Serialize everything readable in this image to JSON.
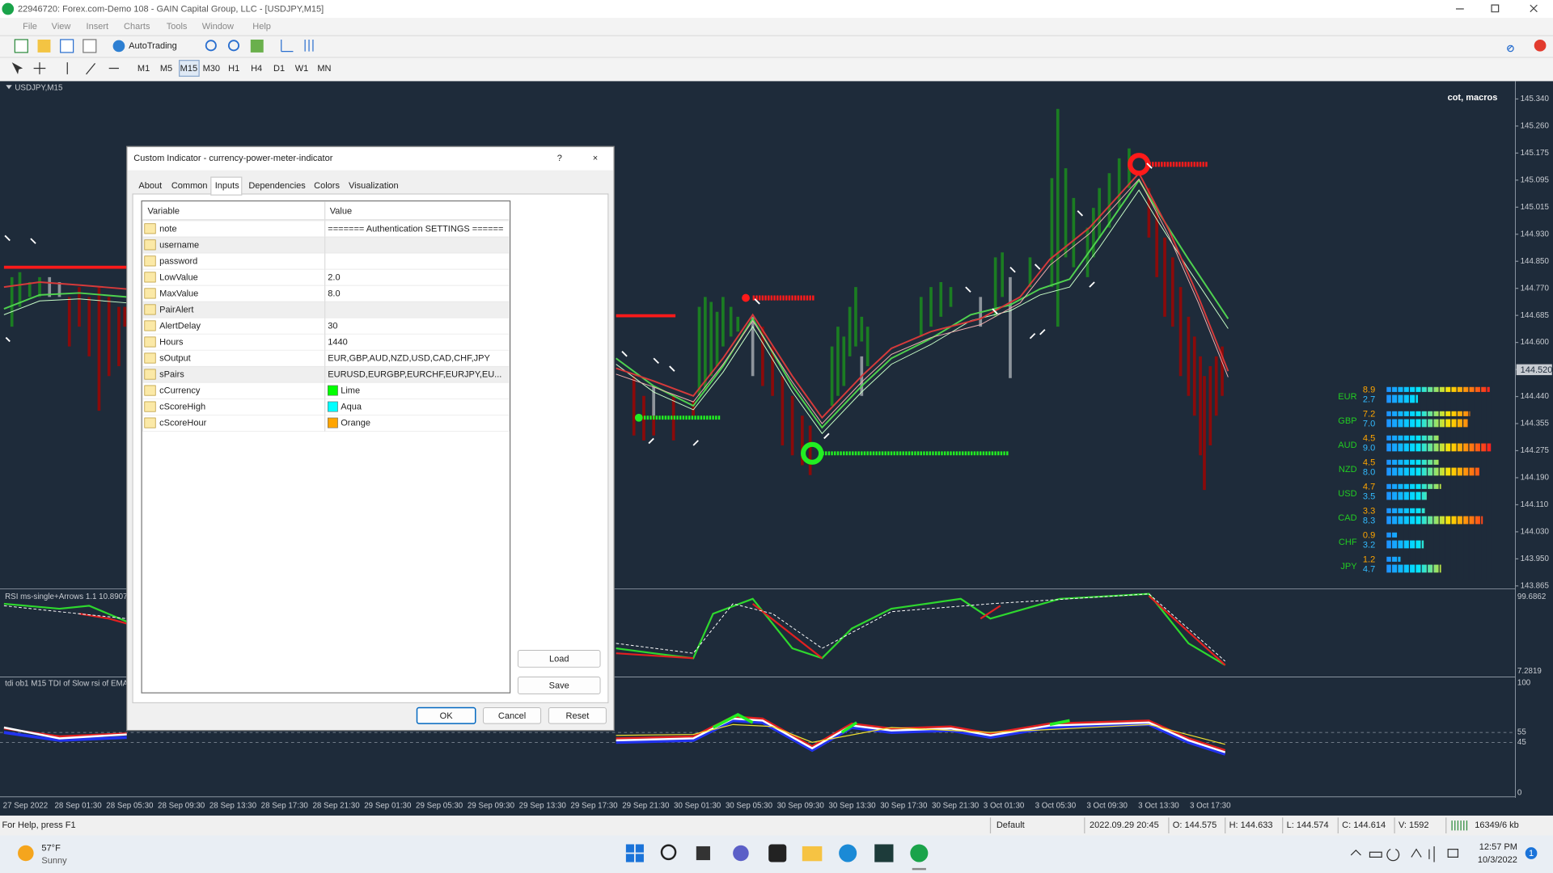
{
  "window": {
    "title": "22946720: Forex.com-Demo 108 - GAIN Capital Group, LLC - [USDJPY,M15]"
  },
  "menu": [
    "File",
    "View",
    "Insert",
    "Charts",
    "Tools",
    "Window",
    "Help"
  ],
  "toolbar": {
    "autotrading": "AutoTrading",
    "timeframes": [
      "M1",
      "M5",
      "M15",
      "M30",
      "H1",
      "H4",
      "D1",
      "W1",
      "MN"
    ]
  },
  "chart": {
    "symbol": "USDJPY,M15",
    "label": "cot, macros",
    "price_labels": [
      "145.340",
      "145.260",
      "145.175",
      "145.095",
      "145.015",
      "144.930",
      "144.850",
      "144.770",
      "144.685",
      "144.600",
      "144.520",
      "144.440",
      "144.355",
      "144.275",
      "144.190",
      "144.110",
      "144.030",
      "143.950",
      "143.865"
    ],
    "current_price": "144.520",
    "time_labels": [
      "27 Sep 2022",
      "28 Sep 01:30",
      "28 Sep 05:30",
      "28 Sep 09:30",
      "28 Sep 13:30",
      "28 Sep 17:30",
      "28 Sep 21:30",
      "29 Sep 01:30",
      "29 Sep 05:30",
      "29 Sep 09:30",
      "29 Sep 13:30",
      "29 Sep 17:30",
      "29 Sep 21:30",
      "30 Sep 01:30",
      "30 Sep 05:30",
      "30 Sep 09:30",
      "30 Sep 13:30",
      "30 Sep 17:30",
      "30 Sep 21:30",
      "3 Oct 01:30",
      "3 Oct 05:30",
      "3 Oct 09:30",
      "3 Oct 13:30",
      "3 Oct 17:30"
    ],
    "indicator1": {
      "name": "RSI ms-single+Arrows 1.1 10.8907",
      "top": "99.6862",
      "bottom": "7.2819"
    },
    "indicator2": {
      "name": "tdi ob1 M15 TDI of Slow rsi of EMA",
      "levels": [
        "100",
        "55",
        "45",
        "0"
      ]
    },
    "meter": [
      {
        "currency": "EUR",
        "a": "8.9",
        "b": "2.7"
      },
      {
        "currency": "GBP",
        "a": "7.2",
        "b": "7.0"
      },
      {
        "currency": "AUD",
        "a": "4.5",
        "b": "9.0"
      },
      {
        "currency": "NZD",
        "a": "4.5",
        "b": "8.0"
      },
      {
        "currency": "USD",
        "a": "4.7",
        "b": "3.5"
      },
      {
        "currency": "CAD",
        "a": "3.3",
        "b": "8.3"
      },
      {
        "currency": "CHF",
        "a": "0.9",
        "b": "3.2"
      },
      {
        "currency": "JPY",
        "a": "1.2",
        "b": "4.7"
      }
    ]
  },
  "dialog": {
    "title": "Custom Indicator - currency-power-meter-indicator",
    "help": "?",
    "close": "×",
    "tabs": [
      "About",
      "Common",
      "Inputs",
      "Dependencies",
      "Colors",
      "Visualization"
    ],
    "columns": [
      "Variable",
      "Value"
    ],
    "rows": [
      {
        "name": "note",
        "value": "======= Authentication SETTINGS ======"
      },
      {
        "name": "username"
      },
      {
        "name": "password"
      },
      {
        "name": "LowValue",
        "value": "2.0"
      },
      {
        "name": "MaxValue",
        "value": "8.0"
      },
      {
        "name": "PairAlert"
      },
      {
        "name": "AlertDelay",
        "value": "30"
      },
      {
        "name": "Hours",
        "value": "1440"
      },
      {
        "name": "sOutput",
        "value": "EUR,GBP,AUD,NZD,USD,CAD,CHF,JPY"
      },
      {
        "name": "sPairs",
        "value": "EURUSD,EURGBP,EURCHF,EURJPY,EU..."
      },
      {
        "name": "cCurrency",
        "value": "Lime",
        "swatch": "#00ff00"
      },
      {
        "name": "cScoreHigh",
        "value": "Aqua",
        "swatch": "#00ffff"
      },
      {
        "name": "cScoreHour",
        "value": "Orange",
        "swatch": "#ffa500"
      }
    ],
    "buttons": {
      "load": "Load",
      "save": "Save",
      "ok": "OK",
      "cancel": "Cancel",
      "reset": "Reset"
    }
  },
  "status": {
    "help": "For Help, press F1",
    "profile": "Default",
    "items": [
      "2022.09.29 20:45",
      "O: 144.575",
      "H: 144.633",
      "L: 144.574",
      "C: 144.614",
      "V: 1592"
    ],
    "traffic": "16349/6 kb"
  },
  "taskbar": {
    "temp": "57°F",
    "weather": "Sunny",
    "time": "12:57 PM",
    "date": "10/3/2022",
    "badge": "1"
  }
}
